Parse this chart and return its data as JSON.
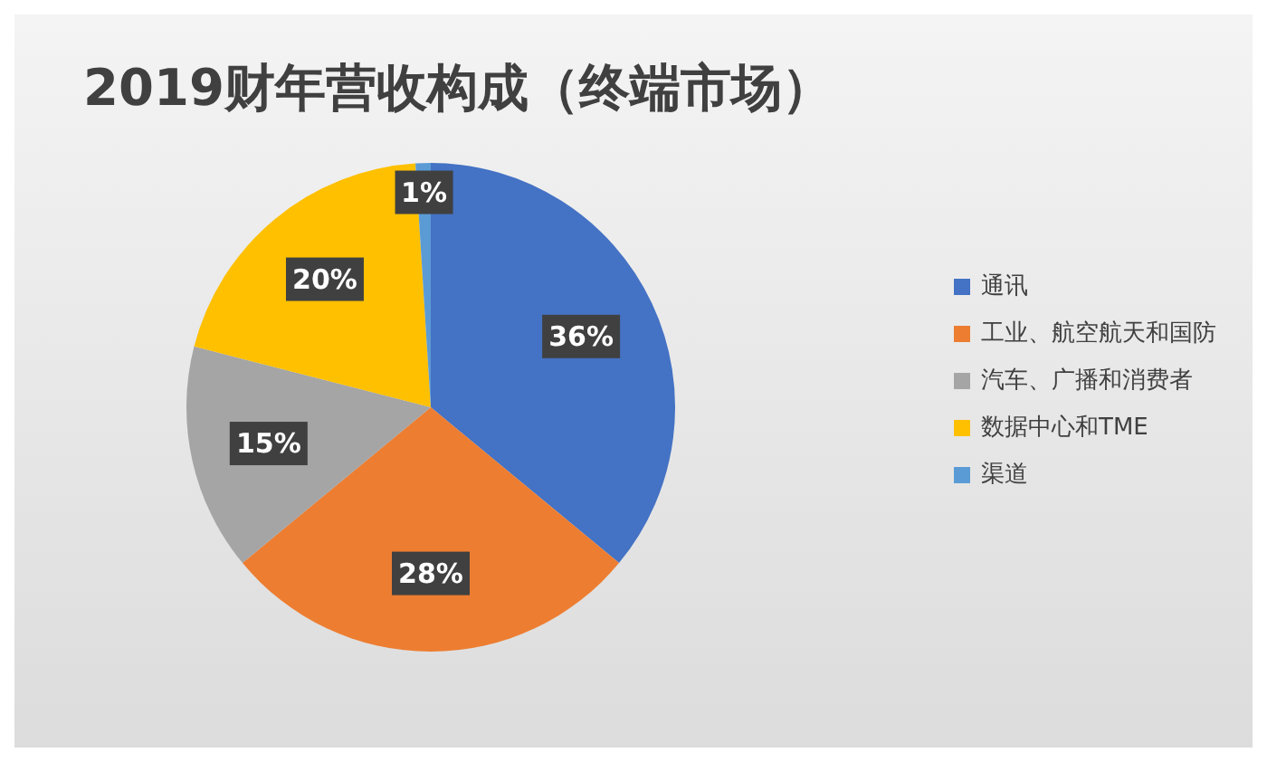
{
  "chart_data": {
    "type": "pie",
    "title": "2019财年营收构成（终端市场）",
    "categories": [
      "通讯",
      "工业、航空航天和国防",
      "汽车、广播和消费者",
      "数据中心和TME",
      "渠道"
    ],
    "values": [
      36,
      28,
      15,
      20,
      1
    ],
    "colors": [
      "#4472c4",
      "#ed7d31",
      "#a5a5a5",
      "#ffc000",
      "#5b9bd5"
    ],
    "value_labels": [
      "36%",
      "28%",
      "15%",
      "20%",
      "1%"
    ],
    "legend": "right"
  }
}
